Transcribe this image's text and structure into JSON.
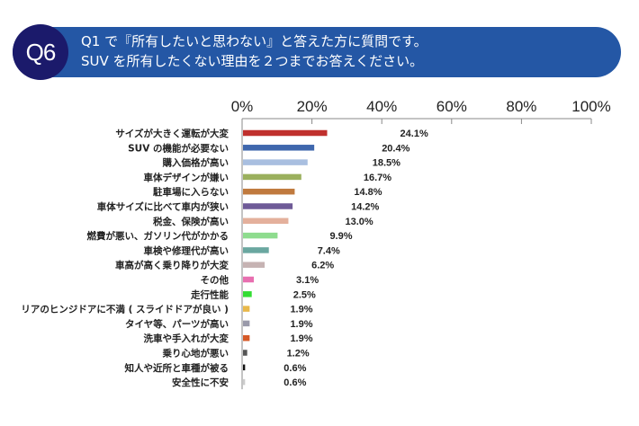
{
  "header": {
    "badge": "Q6",
    "line1": "Q1 で『所有したいと思わない』と答えた方に質問です。",
    "line2": "SUV を所有したくない理由を２つまでお答えください。",
    "colors": {
      "banner": "#2457a5",
      "badge": "#1b1a6b"
    }
  },
  "chart_data": {
    "type": "bar",
    "orientation": "horizontal",
    "title": "SUV を所有したくない理由を２つまでお答えください。",
    "xlim": [
      0,
      100
    ],
    "xticks": [
      "0%",
      "20%",
      "40%",
      "60%",
      "80%",
      "100%"
    ],
    "xtick_values": [
      0,
      20,
      40,
      60,
      80,
      100
    ],
    "categories": [
      "サイズが大きく運転が大変",
      "SUV の機能が必要ない",
      "購入価格が高い",
      "車体デザインが嫌い",
      "駐車場に入らない",
      "車体サイズに比べて車内が狭い",
      "税金、保険が高い",
      "燃費が悪い、ガソリン代がかかる",
      "車検や修理代が高い",
      "車高が高く乗り降りが大変",
      "その他",
      "走行性能",
      "リアのヒンジドアに不満 ( スライドドアが良い )",
      "タイヤ等、パーツが高い",
      "洗車や手入れが大変",
      "乗り心地が悪い",
      "知人や近所と車種が被る",
      "安全性に不安"
    ],
    "values": [
      24.1,
      20.4,
      18.5,
      16.7,
      14.8,
      14.2,
      13.0,
      9.9,
      7.4,
      6.2,
      3.1,
      2.5,
      1.9,
      1.9,
      1.9,
      1.2,
      0.6,
      0.6
    ],
    "labels": [
      "24.1%",
      "20.4%",
      "18.5%",
      "16.7%",
      "14.8%",
      "14.2%",
      "13.0%",
      "9.9%",
      "7.4%",
      "6.2%",
      "3.1%",
      "2.5%",
      "1.9%",
      "1.9%",
      "1.9%",
      "1.2%",
      "0.6%",
      "0.6%"
    ],
    "colors": [
      "#c0302d",
      "#3f67ad",
      "#a9bfe0",
      "#9bb05e",
      "#c07a3e",
      "#6e5a97",
      "#e4b09c",
      "#8edc8e",
      "#6aa7a0",
      "#c6b3b3",
      "#e86fb0",
      "#33dd33",
      "#e9b84a",
      "#9a9aaa",
      "#d65a28",
      "#555555",
      "#111111",
      "#cccccc"
    ],
    "grid": false,
    "legend": "none"
  }
}
